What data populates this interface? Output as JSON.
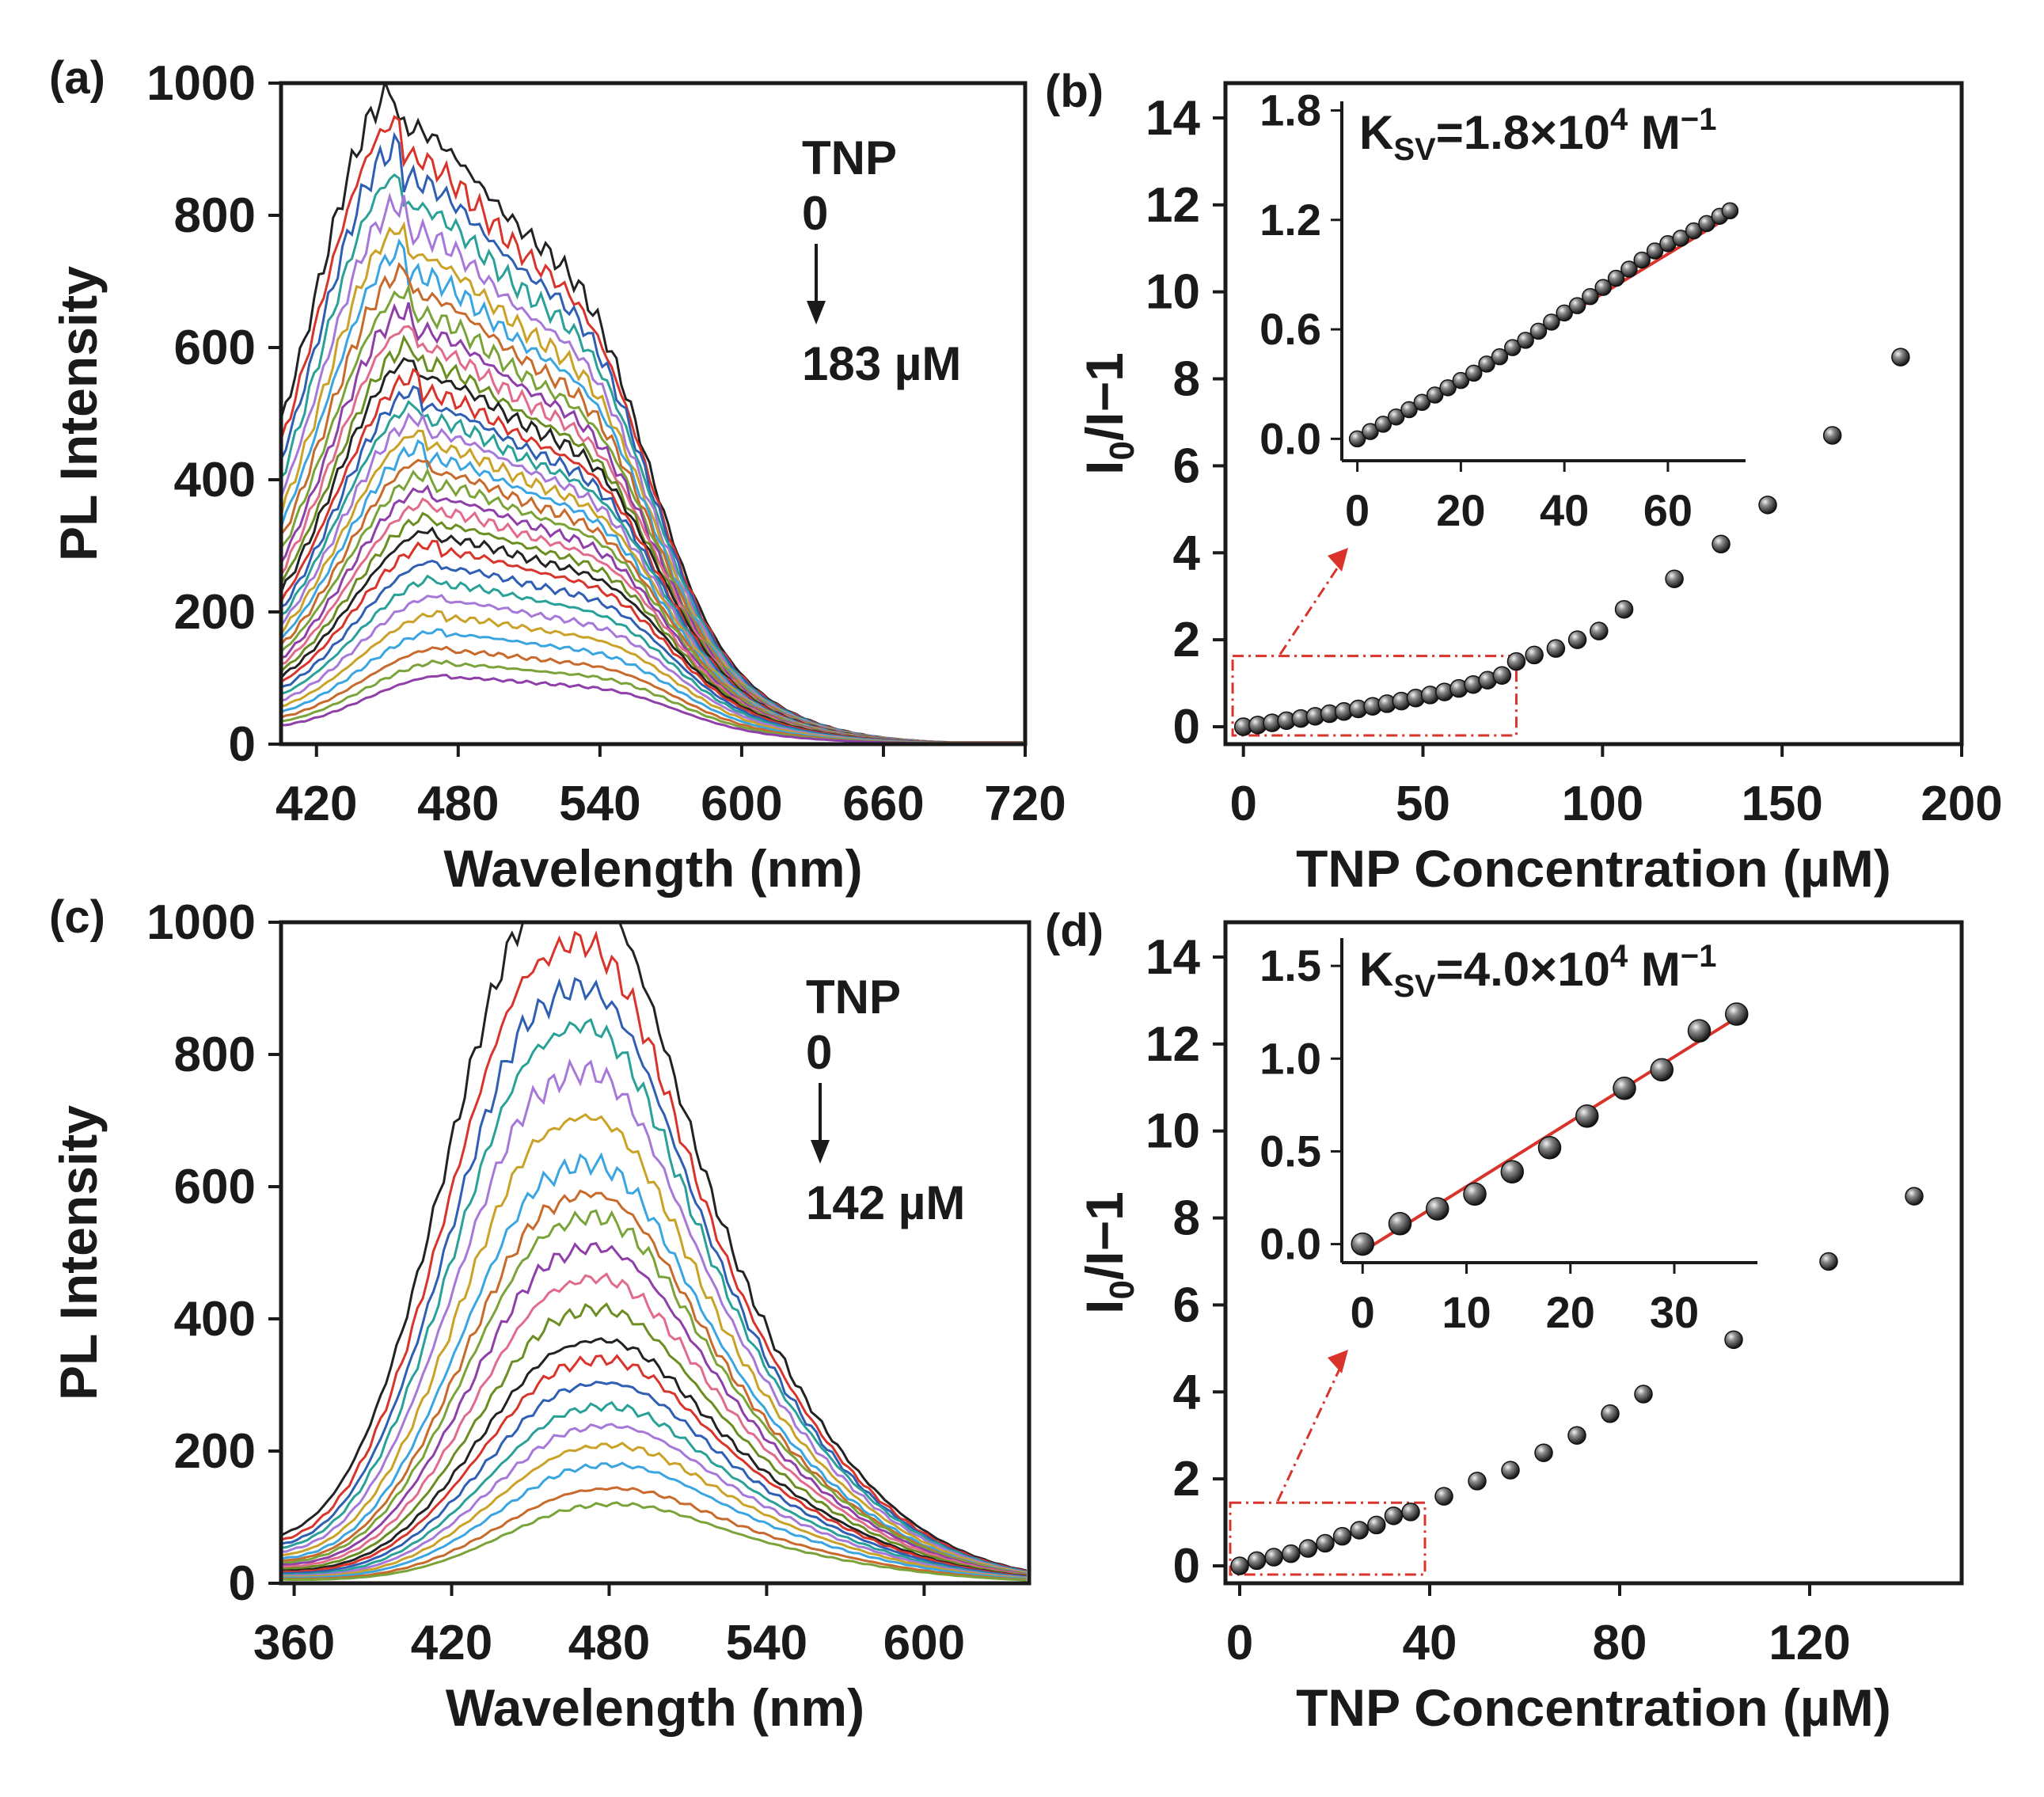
{
  "chart_data": [
    {
      "panel": "(a)",
      "type": "line",
      "xlabel": "Wavelength (nm)",
      "ylabel": "PL Intensity",
      "xlim": [
        405,
        720
      ],
      "ylim": [
        0,
        1000
      ],
      "xticks": [
        "420",
        "480",
        "540",
        "600",
        "660",
        "720"
      ],
      "yticks": [
        "0",
        "200",
        "400",
        "600",
        "800",
        "1000"
      ],
      "annotation": {
        "title": "TNP",
        "start": "0",
        "end": "183 µM"
      },
      "peak_wavelength": 455,
      "shoulder_wavelength": 540,
      "start_intensity_fraction": 0.14,
      "peak_intensities": [
        935,
        890,
        855,
        815,
        775,
        740,
        710,
        680,
        650,
        625,
        600,
        575,
        555,
        530,
        510,
        490,
        470,
        450,
        430,
        410,
        390,
        370,
        350,
        330,
        310,
        290,
        265,
        240,
        215,
        190,
        165,
        140,
        120,
        100
      ],
      "colors": [
        "#222222",
        "#d9342b",
        "#2f5fb3",
        "#2aa198",
        "#a678d8",
        "#c9a227",
        "#3aa5e0",
        "#c76a2c",
        "#7aa33a",
        "#8f3fa8",
        "#e06b8b",
        "#6b8e23"
      ]
    },
    {
      "panel": "(b)",
      "type": "scatter",
      "xlabel": "TNP Concentration (µM)",
      "ylabel": "I0/I−1",
      "xlim": [
        -5,
        200
      ],
      "ylim": [
        -0.4,
        14.8
      ],
      "xticks": [
        "0",
        "50",
        "100",
        "150",
        "200"
      ],
      "yticks": [
        "0",
        "2",
        "4",
        "6",
        "8",
        "10",
        "12",
        "14"
      ],
      "x": [
        0,
        4,
        8,
        12,
        16,
        20,
        24,
        28,
        32,
        36,
        40,
        44,
        48,
        52,
        56,
        60,
        64,
        68,
        72,
        76,
        81,
        87,
        93,
        99,
        106,
        120,
        133,
        146,
        164,
        183
      ],
      "y": [
        0,
        0.04,
        0.09,
        0.14,
        0.19,
        0.24,
        0.3,
        0.35,
        0.41,
        0.47,
        0.53,
        0.59,
        0.66,
        0.73,
        0.8,
        0.88,
        0.97,
        1.07,
        1.18,
        1.5,
        1.65,
        1.8,
        2.0,
        2.2,
        2.7,
        3.4,
        4.2,
        5.1,
        6.7,
        8.5
      ],
      "inset": {
        "ksv_text": "=1.8×10",
        "ksv_sup": "4",
        "ksv_unit": "M",
        "ksv_unit_sup": "−1",
        "xlim": [
          -3,
          75
        ],
        "ylim": [
          -0.12,
          1.85
        ],
        "xticks": [
          "0",
          "20",
          "40",
          "60"
        ],
        "yticks": [
          "0.0",
          "0.6",
          "1.2",
          "1.8"
        ],
        "x": [
          0,
          2.5,
          5,
          7.5,
          10,
          12.5,
          15,
          17.5,
          20,
          22.5,
          25,
          27.5,
          30,
          32.5,
          35,
          37.5,
          40,
          42.5,
          45,
          47.5,
          50,
          52.5,
          55,
          57.5,
          60,
          62.5,
          65,
          67.5,
          70,
          72
        ],
        "y": [
          0,
          0.04,
          0.08,
          0.12,
          0.16,
          0.2,
          0.24,
          0.28,
          0.32,
          0.36,
          0.41,
          0.45,
          0.5,
          0.54,
          0.59,
          0.64,
          0.69,
          0.73,
          0.78,
          0.83,
          0.88,
          0.93,
          0.98,
          1.03,
          1.07,
          1.1,
          1.14,
          1.18,
          1.22,
          1.25
        ],
        "fit": {
          "x": [
            0,
            72
          ],
          "y": [
            -0.02,
            1.22
          ]
        }
      }
    },
    {
      "panel": "(c)",
      "type": "line",
      "xlabel": "Wavelength (nm)",
      "ylabel": "PL Intensity",
      "xlim": [
        355,
        640
      ],
      "ylim": [
        0,
        1000
      ],
      "xticks": [
        "360",
        "420",
        "480",
        "540",
        "600"
      ],
      "yticks": [
        "0",
        "200",
        "400",
        "600",
        "800",
        "1000"
      ],
      "annotation": {
        "title": "TNP",
        "start": "0",
        "end": "142 µM"
      },
      "peak_wavelength": 450,
      "shoulder_wavelength": 478,
      "start_intensity_fraction": 0.05,
      "peak_intensities": [
        910,
        830,
        770,
        720,
        660,
        600,
        540,
        500,
        470,
        430,
        390,
        350,
        310,
        285,
        255,
        225,
        200,
        175,
        150,
        120,
        100
      ],
      "colors": [
        "#222222",
        "#d9342b",
        "#2f5fb3",
        "#2aa198",
        "#a678d8",
        "#c9a227",
        "#3aa5e0",
        "#c76a2c",
        "#7aa33a",
        "#8f3fa8",
        "#e06b8b",
        "#6b8e23"
      ]
    },
    {
      "panel": "(d)",
      "type": "scatter",
      "xlabel": "TNP Concentration (µM)",
      "ylabel": "I0/I−1",
      "xlim": [
        -3,
        152
      ],
      "ylim": [
        -0.4,
        14.8
      ],
      "xticks": [
        "0",
        "40",
        "80",
        "120"
      ],
      "yticks": [
        "0",
        "2",
        "4",
        "6",
        "8",
        "10",
        "12",
        "14"
      ],
      "x": [
        0,
        3.6,
        7.2,
        10.8,
        14.4,
        18,
        21.6,
        25.2,
        28.8,
        32.4,
        36,
        43,
        50,
        57,
        64,
        71,
        78,
        85,
        104,
        124,
        142
      ],
      "y": [
        0,
        0.12,
        0.2,
        0.28,
        0.4,
        0.52,
        0.68,
        0.82,
        0.94,
        1.15,
        1.24,
        1.6,
        1.95,
        2.2,
        2.6,
        3.0,
        3.5,
        3.95,
        5.2,
        7.0,
        8.5
      ],
      "inset": {
        "ksv_text": "=4.0×10",
        "ksv_sup": "4",
        "ksv_unit": "M",
        "ksv_unit_sup": "−1",
        "xlim": [
          -2,
          38
        ],
        "ylim": [
          -0.1,
          1.65
        ],
        "xticks": [
          "0",
          "10",
          "20",
          "30"
        ],
        "yticks": [
          "0.0",
          "0.5",
          "1.0",
          "1.5"
        ],
        "x": [
          0,
          3.6,
          7.2,
          10.8,
          14.4,
          18,
          21.6,
          25.2,
          28.8,
          32.4,
          36
        ],
        "y": [
          0,
          0.11,
          0.19,
          0.27,
          0.39,
          0.52,
          0.69,
          0.84,
          0.94,
          1.15,
          1.24
        ],
        "fit": {
          "x": [
            0,
            36
          ],
          "y": [
            -0.04,
            1.22
          ]
        }
      }
    }
  ]
}
